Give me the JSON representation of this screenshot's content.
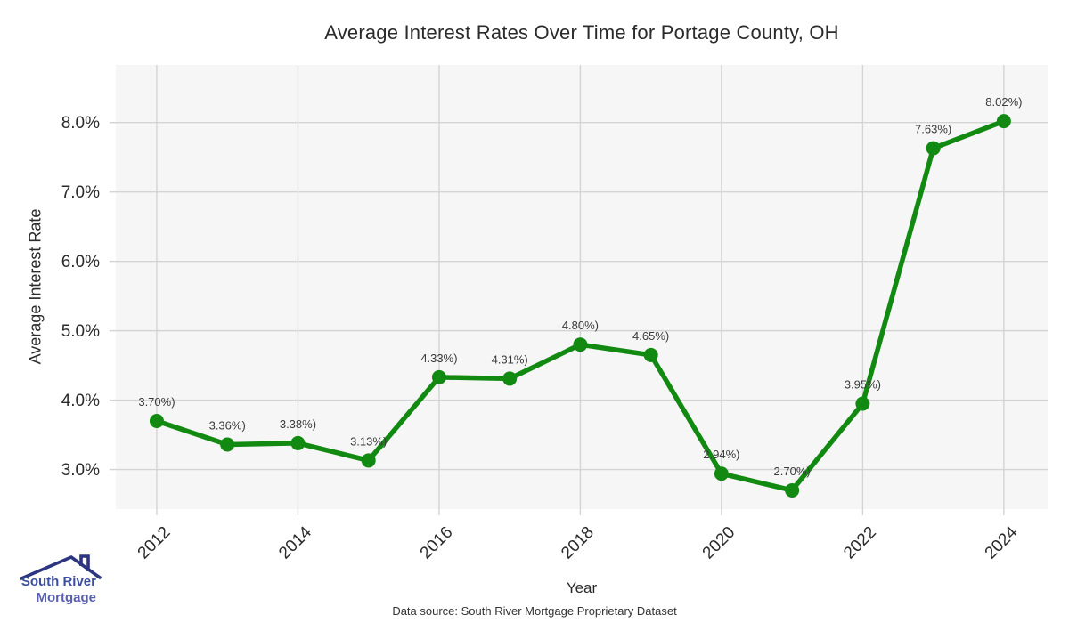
{
  "chart_data": {
    "type": "line",
    "title": "Average Interest Rates Over Time for Portage County, OH",
    "xlabel": "Year",
    "ylabel": "Average Interest Rate",
    "x": [
      2012,
      2013,
      2014,
      2015,
      2016,
      2017,
      2018,
      2019,
      2020,
      2021,
      2022,
      2023,
      2024
    ],
    "values": [
      3.7,
      3.36,
      3.38,
      3.13,
      4.33,
      4.31,
      4.8,
      4.65,
      2.94,
      2.7,
      3.95,
      7.63,
      8.02
    ],
    "point_labels": [
      "3.70%)",
      "3.36%)",
      "3.38%)",
      "3.13%)",
      "4.33%)",
      "4.31%)",
      "4.80%)",
      "4.65%)",
      "2.94%)",
      "2.70%)",
      "3.95%)",
      "7.63%)",
      "8.02%)"
    ],
    "xtick_values": [
      2012,
      2014,
      2016,
      2018,
      2020,
      2022,
      2024
    ],
    "xtick_labels": [
      "2012",
      "2014",
      "2016",
      "2018",
      "2020",
      "2022",
      "2024"
    ],
    "ytick_values": [
      3,
      4,
      5,
      6,
      7,
      8
    ],
    "ytick_labels": [
      "3.0%",
      "4.0%",
      "5.0%",
      "6.0%",
      "7.0%",
      "8.0%"
    ],
    "xlim": [
      2011.42,
      2024.62
    ],
    "ylim": [
      2.43,
      8.83
    ],
    "grid": true,
    "legend": "none",
    "colors": {
      "line": "#128a12",
      "marker": "#128a12",
      "grid": "#d4d4d4",
      "plot_bg": "#f6f6f6",
      "tick_text": "#2b2b2b",
      "point_label_text": "#3a3a3a"
    }
  },
  "logo": {
    "line1": "South River",
    "line2": "Mortgage",
    "line1_color": "#3c4e9e",
    "line2_color": "#5a5fae",
    "roof_color": "#2c357f"
  },
  "footer": {
    "data_source": "Data source: South River Mortgage Proprietary Dataset"
  }
}
